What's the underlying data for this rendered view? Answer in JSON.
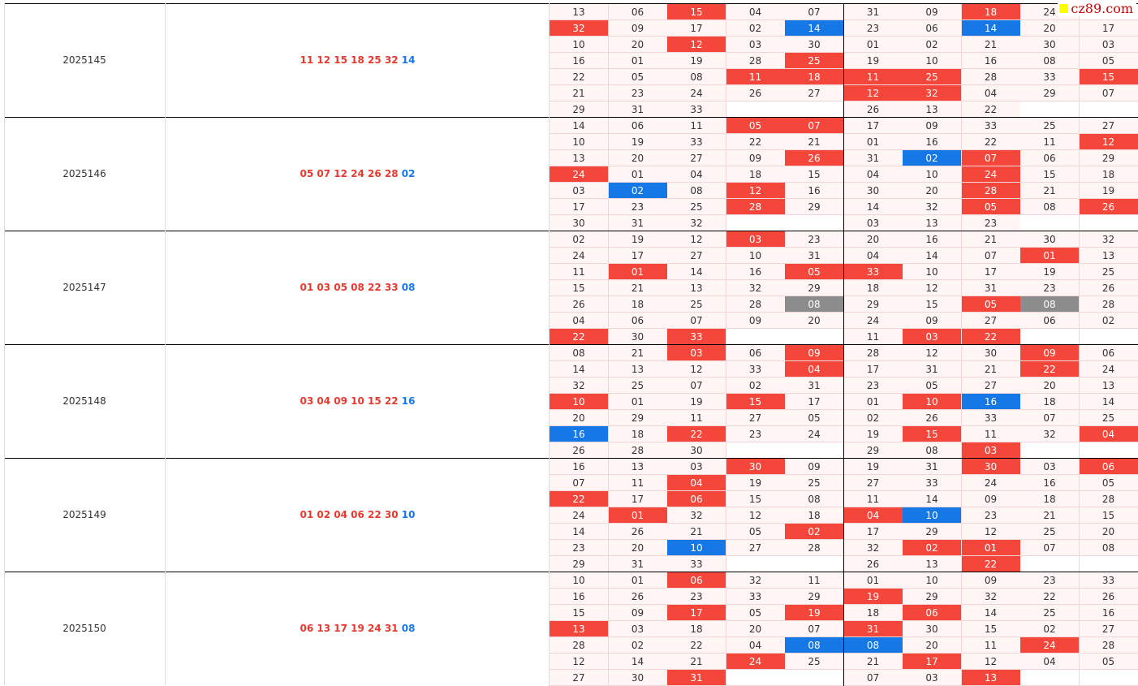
{
  "watermark": "cz89.com",
  "groups": [
    {
      "issue": "2025145",
      "red": "11 12 15 18 25 32",
      "blue": "14",
      "cells": [
        [
          "13",
          "06",
          {
            "t": "15",
            "c": "#f4463a"
          },
          "04",
          "07",
          "31",
          "09",
          {
            "t": "18",
            "c": "#f4463a"
          },
          "24",
          null
        ],
        [
          {
            "t": "32",
            "c": "#f4463a"
          },
          "09",
          "17",
          "02",
          {
            "t": "14",
            "c": "#1677e6"
          },
          "23",
          "06",
          {
            "t": "14",
            "c": "#1677e6"
          },
          "20",
          "17"
        ],
        [
          "10",
          "20",
          {
            "t": "12",
            "c": "#f4463a"
          },
          "03",
          "30",
          "01",
          "02",
          "21",
          "30",
          "03"
        ],
        [
          "16",
          "01",
          "19",
          "28",
          {
            "t": "25",
            "c": "#f4463a"
          },
          "19",
          "10",
          "16",
          "08",
          "05"
        ],
        [
          "22",
          "05",
          "08",
          {
            "t": "11",
            "c": "#f4463a"
          },
          {
            "t": "18",
            "c": "#f4463a"
          },
          {
            "t": "11",
            "c": "#f4463a"
          },
          {
            "t": "25",
            "c": "#f4463a"
          },
          "28",
          "33",
          {
            "t": "15",
            "c": "#f4463a"
          }
        ],
        [
          "21",
          "23",
          "24",
          "26",
          "27",
          {
            "t": "12",
            "c": "#f4463a"
          },
          {
            "t": "32",
            "c": "#f4463a"
          },
          "04",
          "29",
          "07"
        ],
        [
          "29",
          "31",
          "33",
          null,
          null,
          "26",
          "13",
          "22",
          null,
          null
        ]
      ]
    },
    {
      "issue": "2025146",
      "red": "05 07 12 24 26 28",
      "blue": "02",
      "cells": [
        [
          "14",
          "06",
          "11",
          {
            "t": "05",
            "c": "#f4463a"
          },
          {
            "t": "07",
            "c": "#f4463a"
          },
          "17",
          "09",
          "33",
          "25",
          "27"
        ],
        [
          "10",
          "19",
          "33",
          "22",
          "21",
          "01",
          "16",
          "22",
          "11",
          {
            "t": "12",
            "c": "#f4463a"
          }
        ],
        [
          "13",
          "20",
          "27",
          "09",
          {
            "t": "26",
            "c": "#f4463a"
          },
          "31",
          {
            "t": "02",
            "c": "#1677e6"
          },
          {
            "t": "07",
            "c": "#f4463a"
          },
          "06",
          "29"
        ],
        [
          {
            "t": "24",
            "c": "#f4463a"
          },
          "01",
          "04",
          "18",
          "15",
          "04",
          "10",
          {
            "t": "24",
            "c": "#f4463a"
          },
          "15",
          "18"
        ],
        [
          "03",
          {
            "t": "02",
            "c": "#1677e6"
          },
          "08",
          {
            "t": "12",
            "c": "#f4463a"
          },
          "16",
          "30",
          "20",
          {
            "t": "28",
            "c": "#f4463a"
          },
          "21",
          "19"
        ],
        [
          "17",
          "23",
          "25",
          {
            "t": "28",
            "c": "#f4463a"
          },
          "29",
          "14",
          "32",
          {
            "t": "05",
            "c": "#f4463a"
          },
          "08",
          {
            "t": "26",
            "c": "#f4463a"
          }
        ],
        [
          "30",
          "31",
          "32",
          null,
          null,
          "03",
          "13",
          "23",
          null,
          null
        ]
      ]
    },
    {
      "issue": "2025147",
      "red": "01 03 05 08 22 33",
      "blue": "08",
      "cells": [
        [
          "02",
          "19",
          "12",
          {
            "t": "03",
            "c": "#f4463a"
          },
          "23",
          "20",
          "16",
          "21",
          "30",
          "32"
        ],
        [
          "24",
          "17",
          "27",
          "10",
          "31",
          "04",
          "14",
          "07",
          {
            "t": "01",
            "c": "#f4463a"
          },
          "13"
        ],
        [
          "11",
          {
            "t": "01",
            "c": "#f4463a"
          },
          "14",
          "16",
          {
            "t": "05",
            "c": "#f4463a"
          },
          {
            "t": "33",
            "c": "#f4463a"
          },
          "10",
          "17",
          "19",
          "25"
        ],
        [
          "15",
          "21",
          "13",
          "32",
          "29",
          "18",
          "12",
          "31",
          "23",
          "26"
        ],
        [
          "26",
          "18",
          "25",
          "28",
          {
            "t": "08",
            "c": "#8c8c8c"
          },
          "29",
          "15",
          {
            "t": "05",
            "c": "#f4463a"
          },
          {
            "t": "08",
            "c": "#8c8c8c"
          },
          "28"
        ],
        [
          "04",
          "06",
          "07",
          "09",
          "20",
          "24",
          "09",
          "27",
          "06",
          "02"
        ],
        [
          {
            "t": "22",
            "c": "#f4463a"
          },
          "30",
          {
            "t": "33",
            "c": "#f4463a"
          },
          null,
          null,
          "11",
          {
            "t": "03",
            "c": "#f4463a"
          },
          {
            "t": "22",
            "c": "#f4463a"
          },
          null,
          null
        ]
      ]
    },
    {
      "issue": "2025148",
      "red": "03 04 09 10 15 22",
      "blue": "16",
      "cells": [
        [
          "08",
          "21",
          {
            "t": "03",
            "c": "#f4463a"
          },
          "06",
          {
            "t": "09",
            "c": "#f4463a"
          },
          "28",
          "12",
          "30",
          {
            "t": "09",
            "c": "#f4463a"
          },
          "06"
        ],
        [
          "14",
          "13",
          "12",
          "33",
          {
            "t": "04",
            "c": "#f4463a"
          },
          "17",
          "31",
          "21",
          {
            "t": "22",
            "c": "#f4463a"
          },
          "24"
        ],
        [
          "32",
          "25",
          "07",
          "02",
          "31",
          "23",
          "05",
          "27",
          "20",
          "13"
        ],
        [
          {
            "t": "10",
            "c": "#f4463a"
          },
          "01",
          "19",
          {
            "t": "15",
            "c": "#f4463a"
          },
          "17",
          "01",
          {
            "t": "10",
            "c": "#f4463a"
          },
          {
            "t": "16",
            "c": "#1677e6"
          },
          "18",
          "14"
        ],
        [
          "20",
          "29",
          "11",
          "27",
          "05",
          "02",
          "26",
          "33",
          "07",
          "25"
        ],
        [
          {
            "t": "16",
            "c": "#1677e6"
          },
          "18",
          {
            "t": "22",
            "c": "#f4463a"
          },
          "23",
          "24",
          "19",
          {
            "t": "15",
            "c": "#f4463a"
          },
          "11",
          "32",
          {
            "t": "04",
            "c": "#f4463a"
          }
        ],
        [
          "26",
          "28",
          "30",
          null,
          null,
          "29",
          "08",
          {
            "t": "03",
            "c": "#f4463a"
          },
          null,
          null
        ]
      ]
    },
    {
      "issue": "2025149",
      "red": "01 02 04 06 22 30",
      "blue": "10",
      "cells": [
        [
          "16",
          "13",
          "03",
          {
            "t": "30",
            "c": "#f4463a"
          },
          "09",
          "19",
          "31",
          {
            "t": "30",
            "c": "#f4463a"
          },
          "03",
          {
            "t": "06",
            "c": "#f4463a"
          }
        ],
        [
          "07",
          "11",
          {
            "t": "04",
            "c": "#f4463a"
          },
          "19",
          "25",
          "27",
          "33",
          "24",
          "16",
          "05"
        ],
        [
          {
            "t": "22",
            "c": "#f4463a"
          },
          "17",
          {
            "t": "06",
            "c": "#f4463a"
          },
          "15",
          "08",
          "11",
          "14",
          "09",
          "18",
          "28"
        ],
        [
          "24",
          {
            "t": "01",
            "c": "#f4463a"
          },
          "32",
          "12",
          "18",
          {
            "t": "04",
            "c": "#f4463a"
          },
          {
            "t": "10",
            "c": "#1677e6"
          },
          "23",
          "21",
          "15"
        ],
        [
          "14",
          "26",
          "21",
          "05",
          {
            "t": "02",
            "c": "#f4463a"
          },
          "17",
          "29",
          "12",
          "25",
          "20"
        ],
        [
          "23",
          "20",
          {
            "t": "10",
            "c": "#1677e6"
          },
          "27",
          "28",
          "32",
          {
            "t": "02",
            "c": "#f4463a"
          },
          {
            "t": "01",
            "c": "#f4463a"
          },
          "07",
          "08"
        ],
        [
          "29",
          "31",
          "33",
          null,
          null,
          "26",
          "13",
          {
            "t": "22",
            "c": "#f4463a"
          },
          null,
          null
        ]
      ]
    },
    {
      "issue": "2025150",
      "red": "06 13 17 19 24 31",
      "blue": "08",
      "cells": [
        [
          "10",
          "01",
          {
            "t": "06",
            "c": "#f4463a"
          },
          "32",
          "11",
          "01",
          "10",
          "09",
          "23",
          "33"
        ],
        [
          "16",
          "26",
          "23",
          "33",
          "29",
          {
            "t": "19",
            "c": "#f4463a"
          },
          "29",
          "32",
          "22",
          "26"
        ],
        [
          "15",
          "09",
          {
            "t": "17",
            "c": "#f4463a"
          },
          "05",
          {
            "t": "19",
            "c": "#f4463a"
          },
          "18",
          {
            "t": "06",
            "c": "#f4463a"
          },
          "14",
          "25",
          "16"
        ],
        [
          {
            "t": "13",
            "c": "#f4463a"
          },
          "03",
          "18",
          "20",
          "07",
          {
            "t": "31",
            "c": "#f4463a"
          },
          "30",
          "15",
          "02",
          "27"
        ],
        [
          "28",
          "02",
          "22",
          "04",
          {
            "t": "08",
            "c": "#1677e6"
          },
          {
            "t": "08",
            "c": "#1677e6"
          },
          "20",
          "11",
          {
            "t": "24",
            "c": "#f4463a"
          },
          "28"
        ],
        [
          "12",
          "14",
          "21",
          {
            "t": "24",
            "c": "#f4463a"
          },
          "25",
          "21",
          {
            "t": "17",
            "c": "#f4463a"
          },
          "12",
          "04",
          "05"
        ],
        [
          "27",
          "30",
          {
            "t": "31",
            "c": "#f4463a"
          },
          null,
          null,
          "07",
          "03",
          {
            "t": "13",
            "c": "#f4463a"
          },
          null,
          null
        ]
      ]
    }
  ]
}
